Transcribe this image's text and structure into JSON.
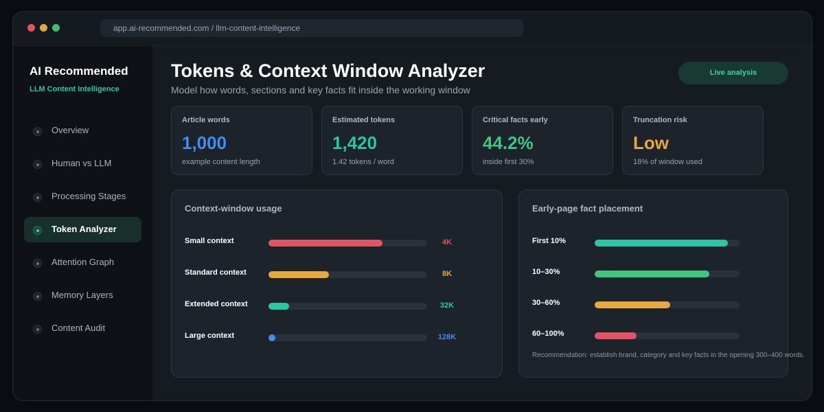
{
  "window": {
    "url": "app.ai-recommended.com / llm-content-intelligence"
  },
  "sidebar": {
    "brand_title": "AI Recommended",
    "brand_subtitle": "LLM Content Intelligence",
    "active_item": "Token Analyzer",
    "items": [
      {
        "label": "Overview"
      },
      {
        "label": "Human vs LLM"
      },
      {
        "label": "Processing Stages"
      },
      {
        "label": "Token Analyzer"
      },
      {
        "label": "Attention Graph"
      },
      {
        "label": "Memory Layers"
      },
      {
        "label": "Content Audit"
      }
    ]
  },
  "header": {
    "title": "Tokens & Context Window Analyzer",
    "subtitle": "Model how words, sections and key facts fit inside the working window",
    "live_button": "Live analysis"
  },
  "stats": [
    {
      "label": "Article words",
      "value": "1,000",
      "note": "example content length",
      "color": "#3f8ef0"
    },
    {
      "label": "Estimated tokens",
      "value": "1,420",
      "note": "1.42 tokens / word",
      "color": "#2cc6a5"
    },
    {
      "label": "Critical facts early",
      "value": "44.2%",
      "note": "inside first 30%",
      "color": "#3fc77e"
    },
    {
      "label": "Truncation risk",
      "value": "Low",
      "note": "18% of window used",
      "color": "#e8a83c"
    }
  ],
  "context_panel": {
    "title": "Context-window usage",
    "rows": [
      {
        "label": "Small context",
        "value": "4K",
        "fraction": 0.72,
        "color": "#e05561"
      },
      {
        "label": "Standard context",
        "value": "8K",
        "fraction": 0.38,
        "color": "#e8a83c"
      },
      {
        "label": "Extended context",
        "value": "32K",
        "fraction": 0.13,
        "color": "#2cc6a5"
      },
      {
        "label": "Large context",
        "value": "128K",
        "fraction": 0.04,
        "color": "#3f8ef0"
      }
    ]
  },
  "placement_panel": {
    "title": "Early-page fact placement",
    "rows": [
      {
        "label": "First 10%",
        "fraction": 0.92,
        "color": "#2cc6a5"
      },
      {
        "label": "10–30%",
        "fraction": 0.79,
        "color": "#3fc77e"
      },
      {
        "label": "30–60%",
        "fraction": 0.52,
        "color": "#e8a83c"
      },
      {
        "label": "60–100%",
        "fraction": 0.29,
        "color": "#e05561"
      }
    ],
    "recommendation": "Recommendation: establish brand, category and key facts in the opening 300–400 words."
  }
}
